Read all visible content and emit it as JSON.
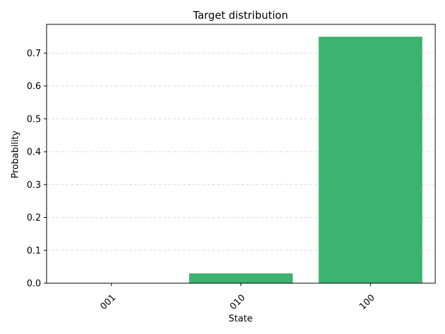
{
  "chart_data": {
    "type": "bar",
    "title": "Target distribution",
    "xlabel": "State",
    "ylabel": "Probability",
    "categories": [
      "001",
      "010",
      "100"
    ],
    "values": [
      0.0,
      0.03,
      0.75
    ],
    "ylim": [
      0,
      0.7875
    ],
    "yticks": [
      0.0,
      0.1,
      0.2,
      0.3,
      0.4,
      0.5,
      0.6,
      0.7
    ],
    "ytick_labels": [
      "0.0",
      "0.1",
      "0.2",
      "0.3",
      "0.4",
      "0.5",
      "0.6",
      "0.7"
    ],
    "xtick_labels": [
      "001",
      "010",
      "100"
    ],
    "xtick_rotation_degrees": 45,
    "grid": {
      "axis": "y",
      "style": "dashed"
    },
    "bar_color": "#3cb371",
    "grid_color": "#d9d9d9"
  }
}
